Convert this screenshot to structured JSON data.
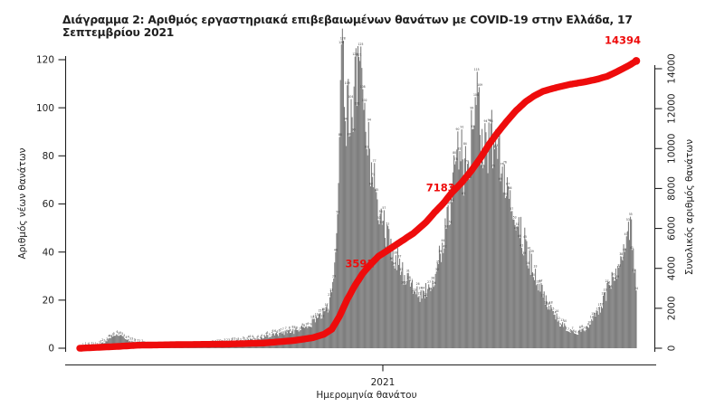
{
  "title": "Διάγραμμα 2: Αριθμός εργαστηριακά επιβεβαιωμένων θανάτων με COVID-19 στην Ελλάδα, 17 Σεπτεμβρίου 2021",
  "axes": {
    "left": {
      "title": "Αριθμός νέων θανάτων",
      "ticks": [
        "0",
        "20",
        "40",
        "60",
        "80",
        "100",
        "120"
      ]
    },
    "right": {
      "title": "Συνολικός αριθμός θανάτων",
      "ticks": [
        "0",
        "2000",
        "4000",
        "6000",
        "8000",
        "10000",
        "12000",
        "14000"
      ]
    },
    "x": {
      "title": "Ημερομηνία θανάτου",
      "year_tick_label": "2021"
    }
  },
  "colors": {
    "bar": "#7e7e7e",
    "bar_label": "#3c3c3c",
    "line": "#ee0c0c",
    "axis_text": "#1f1f1f"
  },
  "chart_data": {
    "type": "bar",
    "title": "Διάγραμμα 2: Αριθμός εργαστηριακά επιβεβαιωμένων θανάτων με COVID-19 στην Ελλάδα, 17 Σεπτεμβρίου 2021",
    "xlabel": "Ημερομηνία θανάτου",
    "ylabel_left": "Αριθμός νέων θανάτων",
    "ylabel_right": "Συνολικός αριθμός θανάτων",
    "ylim_left": [
      0,
      120
    ],
    "ylim_right": [
      0,
      14000
    ],
    "grid": false,
    "legend": "none",
    "x_domain": {
      "days_total": 574,
      "year_tick": {
        "label": "2021",
        "day": 313
      }
    },
    "bar_series": {
      "name": "daily-deaths",
      "note": "piecewise-linear envelope control points [day,value] read from the histogram; peaks 121 (Dec 2020) and 100 (Apr 2021)",
      "control_points": [
        [
          0,
          0
        ],
        [
          6,
          1
        ],
        [
          18,
          1
        ],
        [
          28,
          3
        ],
        [
          36,
          6
        ],
        [
          43,
          5
        ],
        [
          52,
          3
        ],
        [
          62,
          2
        ],
        [
          72,
          1
        ],
        [
          95,
          1
        ],
        [
          120,
          1
        ],
        [
          145,
          2
        ],
        [
          165,
          3
        ],
        [
          185,
          4
        ],
        [
          205,
          6
        ],
        [
          222,
          7
        ],
        [
          238,
          10
        ],
        [
          250,
          14
        ],
        [
          257,
          18
        ],
        [
          262,
          26
        ],
        [
          267,
          60
        ],
        [
          270,
          121
        ],
        [
          274,
          100
        ],
        [
          280,
          95
        ],
        [
          284,
          108
        ],
        [
          288,
          119
        ],
        [
          292,
          110
        ],
        [
          297,
          92
        ],
        [
          301,
          76
        ],
        [
          306,
          63
        ],
        [
          311,
          55
        ],
        [
          317,
          47
        ],
        [
          325,
          39
        ],
        [
          334,
          30
        ],
        [
          343,
          25
        ],
        [
          352,
          21
        ],
        [
          360,
          26
        ],
        [
          367,
          32
        ],
        [
          374,
          44
        ],
        [
          380,
          55
        ],
        [
          386,
          70
        ],
        [
          392,
          88
        ],
        [
          397,
          72
        ],
        [
          403,
          85
        ],
        [
          410,
          100
        ],
        [
          414,
          90
        ],
        [
          420,
          80
        ],
        [
          427,
          88
        ],
        [
          433,
          83
        ],
        [
          440,
          72
        ],
        [
          448,
          60
        ],
        [
          456,
          47
        ],
        [
          464,
          37
        ],
        [
          472,
          28
        ],
        [
          480,
          21
        ],
        [
          488,
          15
        ],
        [
          496,
          10
        ],
        [
          504,
          8
        ],
        [
          511,
          6
        ],
        [
          518,
          7
        ],
        [
          526,
          10
        ],
        [
          533,
          14
        ],
        [
          540,
          20
        ],
        [
          547,
          27
        ],
        [
          553,
          33
        ],
        [
          559,
          39
        ],
        [
          564,
          44
        ],
        [
          569,
          48
        ],
        [
          571,
          42
        ],
        [
          573,
          32
        ],
        [
          574,
          28
        ]
      ]
    },
    "line_series": {
      "name": "cumulative-deaths",
      "final_total": 14394,
      "control_points": [
        [
          0,
          0
        ],
        [
          40,
          90
        ],
        [
          60,
          150
        ],
        [
          100,
          180
        ],
        [
          150,
          205
        ],
        [
          190,
          260
        ],
        [
          220,
          380
        ],
        [
          240,
          520
        ],
        [
          252,
          700
        ],
        [
          260,
          950
        ],
        [
          268,
          1600
        ],
        [
          276,
          2450
        ],
        [
          284,
          3150
        ],
        [
          292,
          3750
        ],
        [
          300,
          4200
        ],
        [
          308,
          4600
        ],
        [
          316,
          4850
        ],
        [
          330,
          5300
        ],
        [
          344,
          5750
        ],
        [
          357,
          6300
        ],
        [
          366,
          6800
        ],
        [
          375,
          7250
        ],
        [
          384,
          7800
        ],
        [
          394,
          8300
        ],
        [
          404,
          8900
        ],
        [
          413,
          9500
        ],
        [
          422,
          10200
        ],
        [
          431,
          10800
        ],
        [
          441,
          11400
        ],
        [
          450,
          11900
        ],
        [
          460,
          12350
        ],
        [
          469,
          12650
        ],
        [
          478,
          12870
        ],
        [
          487,
          13000
        ],
        [
          497,
          13120
        ],
        [
          506,
          13220
        ],
        [
          516,
          13300
        ],
        [
          525,
          13380
        ],
        [
          534,
          13480
        ],
        [
          544,
          13620
        ],
        [
          552,
          13800
        ],
        [
          560,
          14000
        ],
        [
          567,
          14180
        ],
        [
          574,
          14394
        ]
      ]
    },
    "annotations": [
      {
        "text": "3591",
        "day": 300,
        "value": 3591
      },
      {
        "text": "7183",
        "day": 374,
        "value": 7183
      },
      {
        "text": "14394",
        "day": 574,
        "value": 14394
      }
    ]
  }
}
